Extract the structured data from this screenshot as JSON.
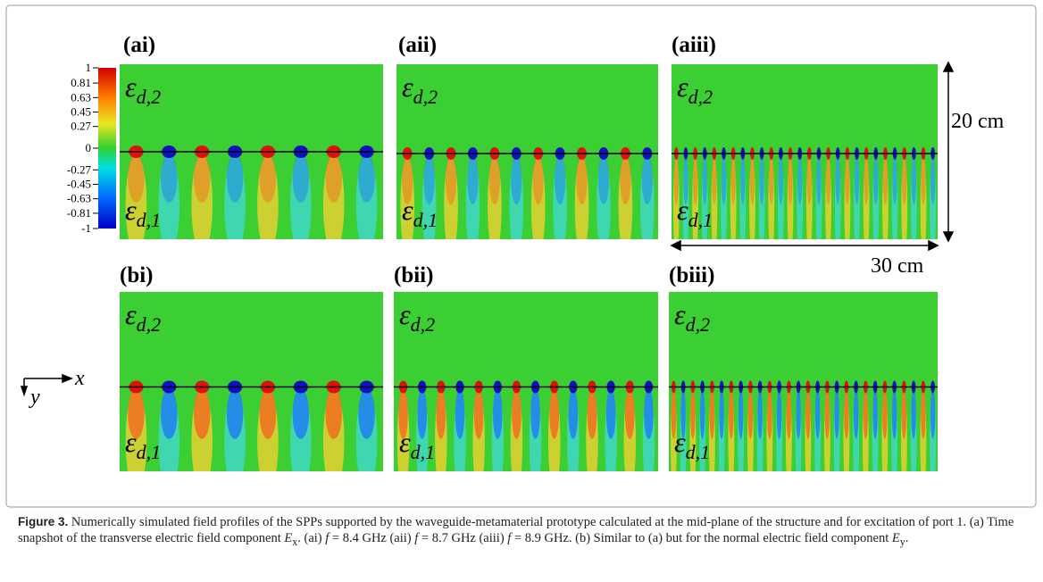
{
  "figure": {
    "panels": [
      {
        "label": "(ai)",
        "top": {
          "symbol": "ε",
          "sub": "d,2"
        },
        "bottom": {
          "symbol": "ε",
          "sub": "d,1"
        }
      },
      {
        "label": "(aii)",
        "top": {
          "symbol": "ε",
          "sub": "d,2"
        },
        "bottom": {
          "symbol": "ε",
          "sub": "d,1"
        }
      },
      {
        "label": "(aiii)",
        "top": {
          "symbol": "ε",
          "sub": "d,2"
        },
        "bottom": {
          "symbol": "ε",
          "sub": "d,1"
        }
      },
      {
        "label": "(bi)",
        "top": {
          "symbol": "ε",
          "sub": "d,2"
        },
        "bottom": {
          "symbol": "ε",
          "sub": "d,1"
        }
      },
      {
        "label": "(bii)",
        "top": {
          "symbol": "ε",
          "sub": "d,2"
        },
        "bottom": {
          "symbol": "ε",
          "sub": "d,1"
        }
      },
      {
        "label": "(biii)",
        "top": {
          "symbol": "ε",
          "sub": "d,2"
        },
        "bottom": {
          "symbol": "ε",
          "sub": "d,1"
        }
      }
    ],
    "colorbar_ticks": [
      1,
      0.81,
      0.63,
      0.45,
      0.27,
      0,
      -0.27,
      -0.45,
      -0.63,
      -0.81,
      -1
    ],
    "height_label": "20 cm",
    "width_label": "30 cm",
    "axis_x": "x",
    "axis_y": "y"
  },
  "caption": {
    "label": "Figure 3.",
    "segments": [
      " Numerically simulated field profiles of the SPPs supported by the waveguide-metamaterial prototype calculated at the mid-plane of the structure and for excitation of port 1. (a) Time snapshot of the transverse electric field component ",
      "E",
      "x",
      ". (ai) ",
      "f",
      " = 8.4 GHz (aii) ",
      "f",
      " = 8.7 GHz (aiii) ",
      "f",
      " = 8.9 GHz. (b) Similar to (a) but for the normal electric field component ",
      "E",
      "y",
      "."
    ]
  }
}
